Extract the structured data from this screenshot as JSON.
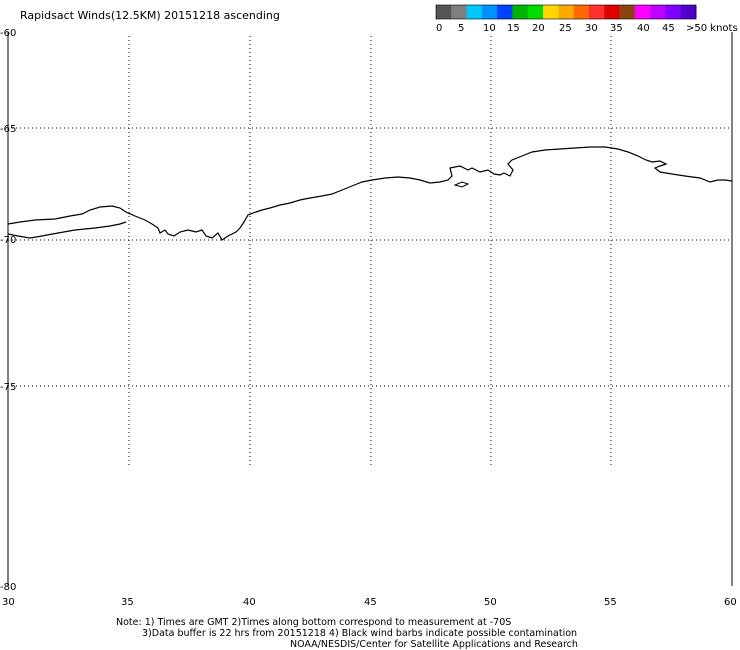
{
  "title": "Rapidsact Winds(12.5KM) 20151218 ascending",
  "legend": {
    "colors": [
      "#555555",
      "#7f7f7f",
      "#00c8ff",
      "#0090ff",
      "#0040ff",
      "#00b400",
      "#00dc00",
      "#ffd700",
      "#ffaa00",
      "#ff6a00",
      "#ff3030",
      "#e00000",
      "#8b4513",
      "#ff00ff",
      "#c000ff",
      "#8000ff",
      "#5000c8"
    ],
    "labels": [
      "0",
      "5",
      "10",
      "15",
      "20",
      "25",
      "30",
      "35",
      "40",
      "45",
      ">50 knots"
    ]
  },
  "axes": {
    "lat_labels": [
      "-60",
      "-65",
      "-70",
      "-75",
      "-80"
    ],
    "lon_labels": [
      "30",
      "35",
      "40",
      "45",
      "50",
      "55",
      "60"
    ]
  },
  "notes": [
    "Note: 1) Times are GMT 2)Times along bottom correspond to measurement at -70S",
    "3)Data buffer is 22 hrs from 20151218 4) Black wind barbs indicate possible contamination",
    "NOAA/NESDIS/Center for Satellite Applications and Research"
  ]
}
